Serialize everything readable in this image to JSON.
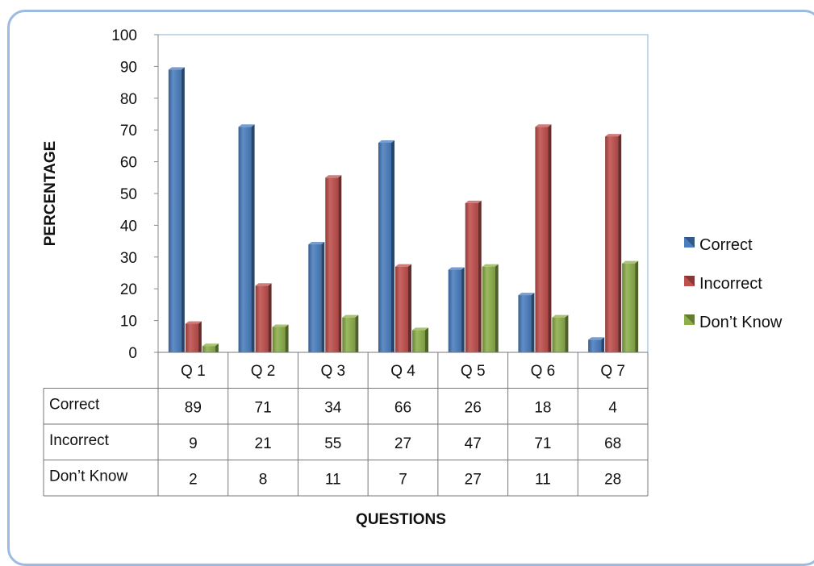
{
  "chart_data": {
    "type": "bar",
    "categories": [
      "Q 1",
      "Q 2",
      "Q 3",
      "Q 4",
      "Q 5",
      "Q 6",
      "Q 7"
    ],
    "series": [
      {
        "name": "Correct",
        "color": "#4a7ebf",
        "values": [
          89,
          71,
          34,
          66,
          26,
          18,
          4
        ]
      },
      {
        "name": "Incorrect",
        "color": "#c0504d",
        "values": [
          9,
          21,
          55,
          27,
          47,
          71,
          68
        ]
      },
      {
        "name": "Don’t Know",
        "color": "#8db04a",
        "values": [
          2,
          8,
          11,
          7,
          27,
          11,
          28
        ]
      }
    ],
    "title": "",
    "xlabel": "QUESTIONS",
    "ylabel": "PERCENTAGE",
    "ylim": [
      0,
      100
    ],
    "yticks": [
      "0",
      "10",
      "20",
      "30",
      "40",
      "50",
      "60",
      "70",
      "80",
      "90",
      "100"
    ],
    "grid": false,
    "legend": "right",
    "data_table": true
  }
}
